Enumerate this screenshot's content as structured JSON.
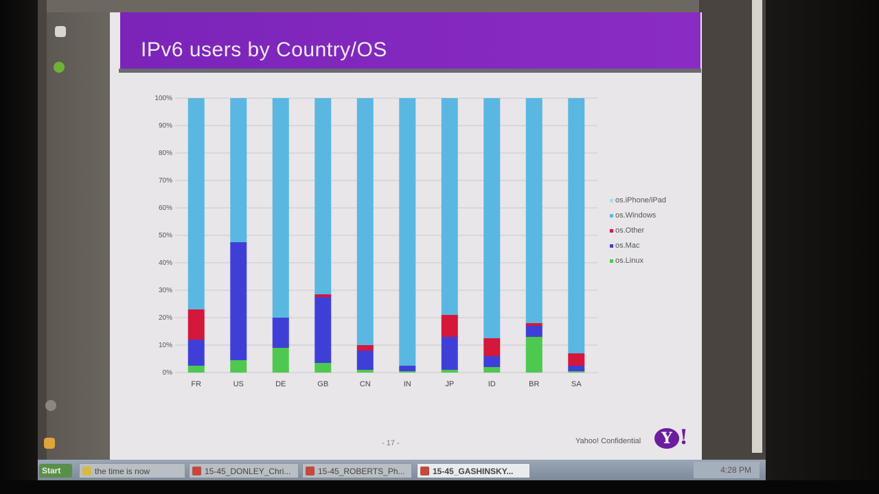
{
  "slide": {
    "title": "IPv6 users by Country/OS",
    "page_number": "- 17 -",
    "confidential": "Yahoo! Confidential",
    "logo_text": "Y",
    "logo_bang": "!"
  },
  "chart_data": {
    "type": "bar",
    "stacked": true,
    "title": "",
    "xlabel": "",
    "ylabel": "",
    "ylim": [
      0,
      100
    ],
    "y_ticks": [
      "0%",
      "10%",
      "20%",
      "30%",
      "40%",
      "50%",
      "60%",
      "70%",
      "80%",
      "90%",
      "100%"
    ],
    "categories": [
      "FR",
      "US",
      "DE",
      "GB",
      "CN",
      "IN",
      "JP",
      "ID",
      "BR",
      "SA"
    ],
    "series": [
      {
        "name": "os.Linux",
        "color": "#4fc84f",
        "values": [
          2.5,
          4.5,
          9,
          3.5,
          1,
          0.5,
          1,
          2,
          13,
          0.5
        ]
      },
      {
        "name": "os.Mac",
        "color": "#3f3fd8",
        "values": [
          9.5,
          43,
          11,
          24,
          7,
          2,
          12,
          4,
          4,
          2
        ]
      },
      {
        "name": "os.Other",
        "color": "#d4173a",
        "values": [
          11,
          0,
          0,
          1,
          2,
          0,
          8,
          6.5,
          1,
          4.5
        ]
      },
      {
        "name": "os.Windows",
        "color": "#5ab7e2",
        "values": [
          77,
          52.5,
          80,
          71.5,
          90,
          97.5,
          79,
          87.5,
          82,
          93
        ]
      },
      {
        "name": "os.iPhone/iPad",
        "color": "#a8dcef",
        "values": [
          0,
          0,
          0,
          0,
          0,
          0,
          0,
          0,
          0,
          0
        ]
      }
    ],
    "legend": {
      "placement": "right",
      "order": [
        "os.iPhone/iPad",
        "os.Windows",
        "os.Other",
        "os.Mac",
        "os.Linux"
      ]
    },
    "grid": true
  },
  "taskbar": {
    "start_label": "Start",
    "items": [
      {
        "label": "the time is now",
        "color": "#d8b848"
      },
      {
        "label": "15-45_DONLEY_Chri...",
        "color": "#c14a3c"
      },
      {
        "label": "15-45_ROBERTS_Ph...",
        "color": "#c14a3c"
      },
      {
        "label": "15-45_GASHINSKY...",
        "color": "#c14a3c"
      }
    ],
    "clock": "4:28 PM"
  }
}
